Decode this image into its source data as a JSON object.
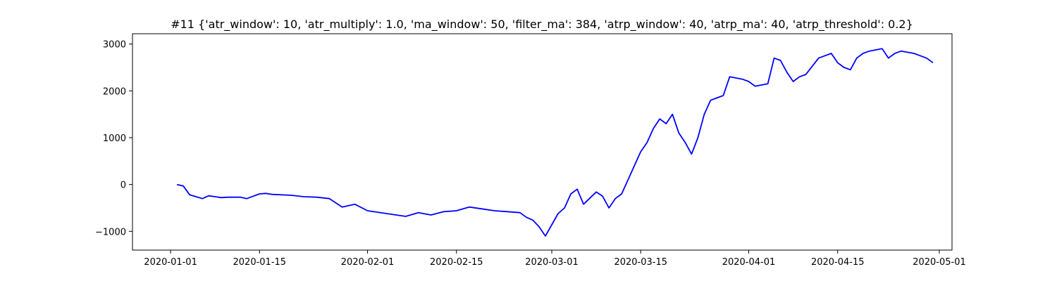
{
  "chart_data": {
    "type": "line",
    "title": "#11 {'atr_window': 10, 'atr_multiply': 1.0, 'ma_window': 50, 'filter_ma': 384, 'atrp_window': 40, 'atrp_ma': 40, 'atrp_threshold': 0.2}",
    "xlabel": "",
    "ylabel": "",
    "xlim": [
      "2019-12-26",
      "2020-05-03"
    ],
    "ylim": [
      -1400,
      3220
    ],
    "x_ticks": [
      "2020-01-01",
      "2020-01-15",
      "2020-02-01",
      "2020-02-15",
      "2020-03-01",
      "2020-03-15",
      "2020-04-01",
      "2020-04-15",
      "2020-05-01"
    ],
    "y_ticks": [
      -1000,
      0,
      1000,
      2000,
      3000
    ],
    "grid": false,
    "line_color": "#0000ff",
    "series": [
      {
        "x": [
          "2020-01-02",
          "2020-01-03",
          "2020-01-04",
          "2020-01-05",
          "2020-01-06",
          "2020-01-07",
          "2020-01-08",
          "2020-01-09",
          "2020-01-10",
          "2020-01-12",
          "2020-01-13",
          "2020-01-14",
          "2020-01-15",
          "2020-01-16",
          "2020-01-17",
          "2020-01-20",
          "2020-01-22",
          "2020-01-24",
          "2020-01-26",
          "2020-01-28",
          "2020-01-30",
          "2020-02-01",
          "2020-02-04",
          "2020-02-07",
          "2020-02-09",
          "2020-02-11",
          "2020-02-13",
          "2020-02-15",
          "2020-02-17",
          "2020-02-19",
          "2020-02-21",
          "2020-02-23",
          "2020-02-25",
          "2020-02-26",
          "2020-02-27",
          "2020-02-28",
          "2020-02-29",
          "2020-03-02",
          "2020-03-03",
          "2020-03-04",
          "2020-03-05",
          "2020-03-06",
          "2020-03-08",
          "2020-03-09",
          "2020-03-10",
          "2020-03-11",
          "2020-03-12",
          "2020-03-13",
          "2020-03-14",
          "2020-03-15",
          "2020-03-16",
          "2020-03-17",
          "2020-03-18",
          "2020-03-19",
          "2020-03-20",
          "2020-03-21",
          "2020-03-22",
          "2020-03-23",
          "2020-03-24",
          "2020-03-25",
          "2020-03-26",
          "2020-03-28",
          "2020-03-29",
          "2020-03-31",
          "2020-04-01",
          "2020-04-02",
          "2020-04-04",
          "2020-04-05",
          "2020-04-06",
          "2020-04-07",
          "2020-04-08",
          "2020-04-09",
          "2020-04-10",
          "2020-04-12",
          "2020-04-13",
          "2020-04-14",
          "2020-04-15",
          "2020-04-16",
          "2020-04-17",
          "2020-04-18",
          "2020-04-19",
          "2020-04-20",
          "2020-04-22",
          "2020-04-23",
          "2020-04-24",
          "2020-04-25",
          "2020-04-27",
          "2020-04-28",
          "2020-04-29",
          "2020-04-30"
        ],
        "values": [
          0,
          -30,
          -220,
          -260,
          -300,
          -240,
          -260,
          -280,
          -270,
          -270,
          -300,
          -250,
          -200,
          -190,
          -210,
          -230,
          -260,
          -270,
          -300,
          -480,
          -420,
          -560,
          -620,
          -680,
          -600,
          -650,
          -580,
          -560,
          -480,
          -520,
          -560,
          -580,
          -600,
          -700,
          -760,
          -900,
          -1100,
          -620,
          -500,
          -200,
          -100,
          -420,
          -160,
          -250,
          -500,
          -300,
          -200,
          100,
          400,
          700,
          900,
          1200,
          1400,
          1300,
          1500,
          1100,
          900,
          650,
          1000,
          1500,
          1800,
          1900,
          2300,
          2250,
          2200,
          2100,
          2150,
          2700,
          2650,
          2400,
          2200,
          2300,
          2350,
          2700,
          2750,
          2800,
          2600,
          2500,
          2450,
          2700,
          2800,
          2850,
          2900,
          2700,
          2800,
          2850,
          2800,
          2750,
          2700,
          2600
        ]
      }
    ]
  }
}
